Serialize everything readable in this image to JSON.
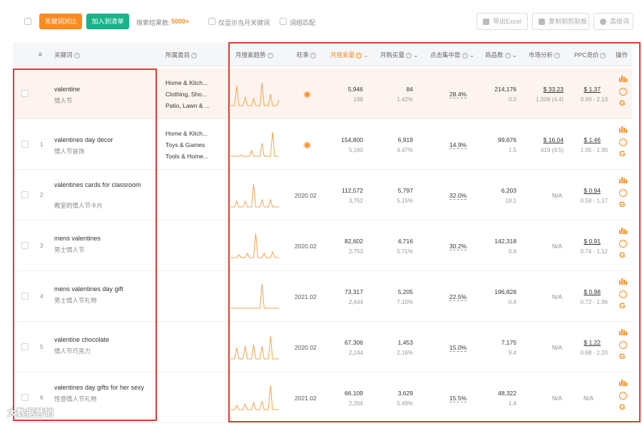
{
  "toolbar": {
    "compare_label": "关键词对比",
    "add_list_label": "加入到清单",
    "result_label": "搜索结果数:",
    "result_count": "5000+",
    "only_month_label": "仅显示当月关键词",
    "exact_label": "词组匹配",
    "export_label": "导出Excel",
    "copy_label": "复制到剪贴板",
    "adv_label": "高级词"
  },
  "columns": {
    "index": "#",
    "keyword": "关键词",
    "category": "所属类目",
    "trend": "月搜索趋势",
    "season": "旺季",
    "monthly_search": "月搜索量",
    "monthly_purchase": "月购买量",
    "click_concentration": "点击集中度",
    "products": "商品数",
    "market": "市场分析",
    "ppc": "PPC竞价",
    "ops": "操作"
  },
  "rows": [
    {
      "index": "",
      "keyword": "valentine",
      "keyword_cn": "情人节",
      "categories": [
        "Home & Kitch...",
        "Clothing, Sho...",
        "Patio, Lawn & ..."
      ],
      "season": "",
      "season_dot": true,
      "search": "5,946",
      "search_sub": "198",
      "purchase": "84",
      "purchase_sub": "1.42%",
      "concentration": "28.4%",
      "products": "214,176",
      "products_sub": "0.0",
      "market": "$ 33.23",
      "market_sub": "1,509 (4.4)",
      "ppc": "$ 1.37",
      "ppc_sub": "0.99 - 2.13",
      "trend": [
        2,
        2,
        2,
        30,
        2,
        2,
        2,
        14,
        2,
        2,
        2,
        12,
        2,
        2,
        2,
        34,
        2,
        2,
        2,
        18,
        2,
        2,
        2,
        10
      ]
    },
    {
      "index": "1",
      "keyword": "valentines day decor",
      "keyword_cn": "情人节装饰",
      "categories": [
        "Home & Kitch...",
        "Toys & Games",
        "Tools & Home..."
      ],
      "season": "",
      "season_dot": true,
      "search": "154,800",
      "search_sub": "5,160",
      "purchase": "6,919",
      "purchase_sub": "4.47%",
      "concentration": "14.9%",
      "products": "99,676",
      "products_sub": "1.5",
      "market": "$ 16.04",
      "market_sub": "419 (4.5)",
      "ppc": "$ 1.46",
      "ppc_sub": "1.05 - 1.90",
      "trend": [
        2,
        2,
        2,
        2,
        2,
        4,
        2,
        2,
        2,
        2,
        10,
        2,
        2,
        2,
        2,
        20,
        2,
        2,
        2,
        2,
        36,
        2,
        2,
        2
      ]
    },
    {
      "index": "2",
      "keyword": "valentines cards for classroom",
      "keyword_cn": "教室的情人节卡片",
      "categories": [],
      "season": "2020.02",
      "season_dot": false,
      "search": "112,572",
      "search_sub": "3,752",
      "purchase": "5,797",
      "purchase_sub": "5.15%",
      "concentration": "32.0%",
      "products": "6,203",
      "products_sub": "18.1",
      "market": "N/A",
      "market_sub": "",
      "ppc": "$ 0.94",
      "ppc_sub": "0.58 - 1.17",
      "trend": [
        2,
        2,
        2,
        10,
        2,
        2,
        2,
        10,
        2,
        2,
        2,
        34,
        2,
        2,
        2,
        12,
        2,
        2,
        2,
        12,
        2,
        2,
        2,
        2
      ]
    },
    {
      "index": "3",
      "keyword": "mens valentines",
      "keyword_cn": "男士情人节",
      "categories": [],
      "season": "2020.02",
      "season_dot": false,
      "search": "82,602",
      "search_sub": "2,753",
      "purchase": "4,716",
      "purchase_sub": "5.71%",
      "concentration": "30.2%",
      "products": "142,318",
      "products_sub": "0.6",
      "market": "N/A",
      "market_sub": "",
      "ppc": "$ 0.91",
      "ppc_sub": "0.74 - 1.12",
      "trend": [
        2,
        2,
        2,
        2,
        6,
        2,
        2,
        2,
        8,
        2,
        2,
        2,
        36,
        2,
        2,
        2,
        8,
        2,
        2,
        2,
        10,
        2,
        2,
        2
      ]
    },
    {
      "index": "4",
      "keyword": "mens valentines day gift",
      "keyword_cn": "男士情人节礼物",
      "categories": [],
      "season": "2021.02",
      "season_dot": false,
      "search": "73,317",
      "search_sub": "2,444",
      "purchase": "5,205",
      "purchase_sub": "7.10%",
      "concentration": "22.5%",
      "products": "196,828",
      "products_sub": "0.4",
      "market": "N/A",
      "market_sub": "",
      "ppc": "$ 0.98",
      "ppc_sub": "0.72 - 1.96",
      "trend": [
        2,
        2,
        2,
        2,
        2,
        2,
        2,
        2,
        2,
        2,
        2,
        2,
        2,
        2,
        2,
        36,
        2,
        2,
        2,
        2,
        2,
        2,
        2,
        2
      ]
    },
    {
      "index": "5",
      "keyword": "valentine chocolate",
      "keyword_cn": "情人节巧克力",
      "categories": [],
      "season": "2020.02",
      "season_dot": false,
      "search": "67,306",
      "search_sub": "2,244",
      "purchase": "1,453",
      "purchase_sub": "2.16%",
      "concentration": "15.0%",
      "products": "7,175",
      "products_sub": "9.4",
      "market": "N/A",
      "market_sub": "",
      "ppc": "$ 1.22",
      "ppc_sub": "0.68 - 2.20",
      "trend": [
        2,
        2,
        2,
        18,
        2,
        2,
        2,
        20,
        2,
        2,
        2,
        22,
        2,
        2,
        2,
        20,
        2,
        2,
        2,
        34,
        2,
        2,
        2,
        2
      ]
    },
    {
      "index": "6",
      "keyword": "valentines day gifts for her sexy",
      "keyword_cn": "性感情人节礼物",
      "categories": [],
      "season": "2021.02",
      "season_dot": false,
      "search": "66,109",
      "search_sub": "2,204",
      "purchase": "3,629",
      "purchase_sub": "5.49%",
      "concentration": "15.5%",
      "products": "48,322",
      "products_sub": "1.4",
      "market": "N/A",
      "market_sub": "",
      "ppc": "N/A",
      "ppc_sub": "",
      "trend": [
        2,
        2,
        2,
        8,
        2,
        2,
        2,
        10,
        2,
        2,
        2,
        12,
        2,
        2,
        2,
        14,
        2,
        2,
        2,
        36,
        2,
        2,
        2,
        2
      ]
    }
  ],
  "watermark": "大数据营销",
  "colors": {
    "accent": "#ff8a1f",
    "green": "#19b38a",
    "annotation": "#e53935"
  }
}
